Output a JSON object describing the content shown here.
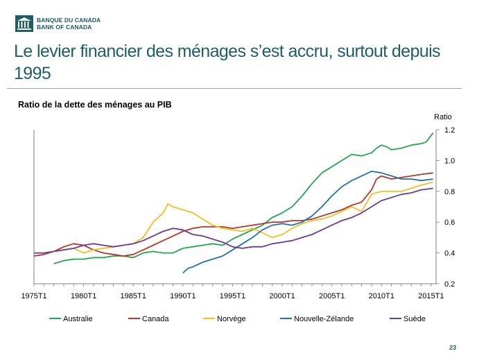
{
  "header": {
    "logo_line1": "BANQUE DU CANADA",
    "logo_line2": "BANK OF CANADA",
    "title": "Le levier financier des ménages s’est accru, surtout depuis 1995"
  },
  "page_number": "23",
  "colors": {
    "Australie": "#22a64a",
    "Canada": "#b5362b",
    "Norvège": "#f2c01e",
    "Nouvelle-Zélande": "#1f6fb0",
    "Suède": "#6b3a93",
    "title": "#1e5f66"
  },
  "chart_data": {
    "type": "line",
    "title": "Ratio de la dette des ménages au PIB",
    "ylabel": "Ratio",
    "xlabel": "",
    "xlim": [
      1975,
      2015.5
    ],
    "ylim": [
      0.2,
      1.2
    ],
    "x_ticks": [
      "1975T1",
      "1980T1",
      "1985T1",
      "1990T1",
      "1995T1",
      "2000T1",
      "2005T1",
      "2010T1",
      "2015T1"
    ],
    "x_tick_values": [
      1975,
      1980,
      1985,
      1990,
      1995,
      2000,
      2005,
      2010,
      2015
    ],
    "y_ticks": [
      "0.2",
      "0.4",
      "0.6",
      "0.8",
      "1.0",
      "1.2"
    ],
    "y_tick_values": [
      0.2,
      0.4,
      0.6,
      0.8,
      1.0,
      1.2
    ],
    "y_axis_side": "right",
    "grid": false,
    "legend_position": "bottom",
    "series": [
      {
        "name": "Australie",
        "x": [
          1977,
          1978,
          1979,
          1980,
          1981,
          1982,
          1983,
          1984,
          1985,
          1986,
          1987,
          1988,
          1989,
          1990,
          1991,
          1992,
          1993,
          1994,
          1995,
          1996,
          1997,
          1998,
          1999,
          2000,
          2001,
          2002,
          2003,
          2004,
          2005,
          2006,
          2007,
          2008,
          2009,
          2009.5,
          2010,
          2010.5,
          2011,
          2012,
          2013,
          2014,
          2014.5,
          2015.2
        ],
        "y": [
          0.33,
          0.35,
          0.36,
          0.36,
          0.37,
          0.37,
          0.38,
          0.38,
          0.37,
          0.4,
          0.41,
          0.4,
          0.4,
          0.43,
          0.44,
          0.45,
          0.46,
          0.45,
          0.49,
          0.52,
          0.55,
          0.58,
          0.63,
          0.66,
          0.7,
          0.77,
          0.85,
          0.92,
          0.96,
          1.0,
          1.04,
          1.03,
          1.05,
          1.08,
          1.1,
          1.09,
          1.07,
          1.08,
          1.1,
          1.11,
          1.12,
          1.18
        ]
      },
      {
        "name": "Canada",
        "x": [
          1975,
          1976,
          1977,
          1978,
          1979,
          1980,
          1981,
          1982,
          1983,
          1984,
          1985,
          1986,
          1987,
          1988,
          1989,
          1990,
          1991,
          1992,
          1993,
          1994,
          1995,
          1996,
          1997,
          1998,
          1999,
          2000,
          2001,
          2002,
          2003,
          2004,
          2005,
          2006,
          2007,
          2008,
          2009,
          2009.5,
          2010,
          2011,
          2012,
          2013,
          2014,
          2015.2
        ],
        "y": [
          0.38,
          0.39,
          0.41,
          0.44,
          0.46,
          0.45,
          0.42,
          0.4,
          0.39,
          0.38,
          0.39,
          0.42,
          0.45,
          0.48,
          0.51,
          0.54,
          0.56,
          0.57,
          0.57,
          0.57,
          0.56,
          0.57,
          0.58,
          0.59,
          0.6,
          0.6,
          0.61,
          0.61,
          0.62,
          0.64,
          0.66,
          0.68,
          0.71,
          0.73,
          0.81,
          0.88,
          0.9,
          0.88,
          0.89,
          0.9,
          0.91,
          0.92
        ]
      },
      {
        "name": "Norvège",
        "x": [
          1975,
          1976,
          1977,
          1978,
          1979,
          1980,
          1981,
          1982,
          1983,
          1984,
          1985,
          1986,
          1987,
          1988,
          1988.5,
          1989,
          1990,
          1991,
          1992,
          1993,
          1994,
          1995,
          1996,
          1997,
          1998,
          1999,
          2000,
          2001,
          2002,
          2003,
          2004,
          2005,
          2006,
          2007,
          2008,
          2009,
          2010,
          2011,
          2012,
          2013,
          2014,
          2015.2
        ],
        "y": [
          0.4,
          0.4,
          0.41,
          0.42,
          0.43,
          0.4,
          0.42,
          0.43,
          0.44,
          0.45,
          0.46,
          0.5,
          0.6,
          0.66,
          0.72,
          0.7,
          0.68,
          0.66,
          0.62,
          0.58,
          0.56,
          0.55,
          0.54,
          0.56,
          0.53,
          0.5,
          0.52,
          0.56,
          0.59,
          0.61,
          0.62,
          0.64,
          0.67,
          0.7,
          0.67,
          0.78,
          0.8,
          0.8,
          0.8,
          0.82,
          0.84,
          0.86
        ]
      },
      {
        "name": "Nouvelle-Zélande",
        "x": [
          1990,
          1990.5,
          1991,
          1992,
          1993,
          1994,
          1995,
          1996,
          1997,
          1998,
          1999,
          2000,
          2001,
          2002,
          2003,
          2004,
          2005,
          2006,
          2007,
          2008,
          2009,
          2010,
          2011,
          2012,
          2013,
          2014,
          2015.2
        ],
        "y": [
          0.27,
          0.3,
          0.31,
          0.34,
          0.36,
          0.38,
          0.42,
          0.46,
          0.5,
          0.55,
          0.58,
          0.59,
          0.58,
          0.6,
          0.64,
          0.7,
          0.77,
          0.83,
          0.87,
          0.9,
          0.93,
          0.92,
          0.9,
          0.88,
          0.88,
          0.87,
          0.88
        ]
      },
      {
        "name": "Suède",
        "x": [
          1975,
          1976,
          1977,
          1978,
          1979,
          1980,
          1981,
          1982,
          1983,
          1984,
          1985,
          1986,
          1987,
          1988,
          1989,
          1990,
          1991,
          1992,
          1993,
          1994,
          1995,
          1996,
          1997,
          1998,
          1999,
          2000,
          2001,
          2002,
          2003,
          2004,
          2005,
          2006,
          2007,
          2008,
          2009,
          2010,
          2011,
          2012,
          2013,
          2014,
          2015.2
        ],
        "y": [
          0.4,
          0.4,
          0.41,
          0.42,
          0.43,
          0.45,
          0.46,
          0.45,
          0.44,
          0.45,
          0.46,
          0.48,
          0.51,
          0.54,
          0.56,
          0.55,
          0.52,
          0.51,
          0.49,
          0.47,
          0.44,
          0.43,
          0.44,
          0.44,
          0.46,
          0.47,
          0.48,
          0.5,
          0.52,
          0.55,
          0.58,
          0.61,
          0.63,
          0.66,
          0.7,
          0.74,
          0.76,
          0.78,
          0.79,
          0.81,
          0.82
        ]
      }
    ]
  }
}
